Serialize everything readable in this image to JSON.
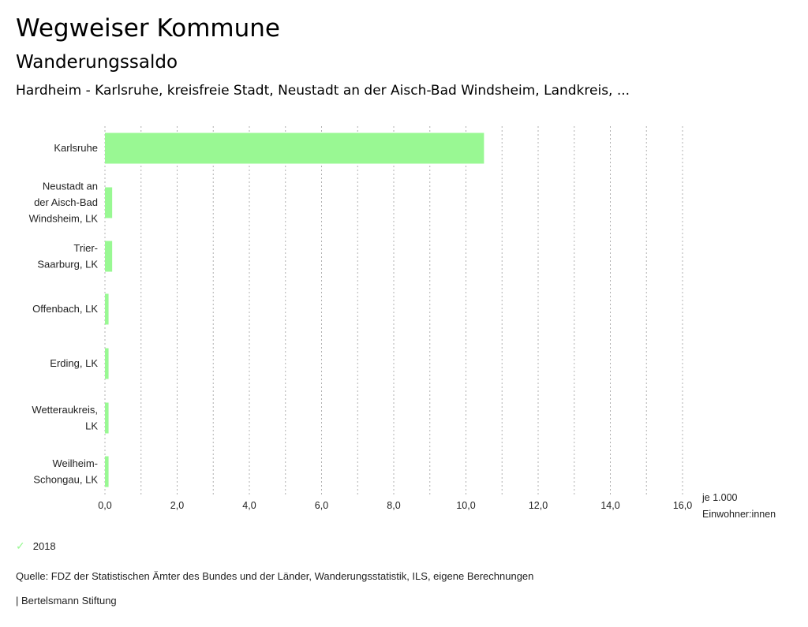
{
  "header": {
    "title": "Wegweiser Kommune",
    "subtitle": "Wanderungssaldo",
    "description": "Hardheim - Karlsruhe, kreisfreie Stadt, Neustadt an der Aisch-Bad Windsheim, Landkreis, ..."
  },
  "legend": {
    "icon": "check-icon",
    "label": "2018"
  },
  "footer": {
    "source": "Quelle: FDZ der Statistischen Ämter des Bundes und der Länder, Wanderungsstatistik, ILS, eigene Berechnungen",
    "credit": "| Bertelsmann Stiftung"
  },
  "chart_data": {
    "type": "bar",
    "orientation": "horizontal",
    "title": "Wanderungssaldo",
    "categories": [
      [
        "Karlsruhe"
      ],
      [
        "Neustadt an",
        "der Aisch-Bad",
        "Windsheim, LK"
      ],
      [
        "Trier-",
        "Saarburg, LK"
      ],
      [
        "Offenbach, LK"
      ],
      [
        "Erding, LK"
      ],
      [
        "Wetteraukreis,",
        "LK"
      ],
      [
        "Weilheim-",
        "Schongau, LK"
      ]
    ],
    "series": [
      {
        "name": "2018",
        "color": "#99f893",
        "values": [
          10.5,
          0.2,
          0.2,
          0.1,
          0.1,
          0.1,
          0.1
        ]
      }
    ],
    "xlabel": "je 1.000 Einwohner:innen",
    "xlabel_lines": [
      "je 1.000",
      "Einwohner:innen"
    ],
    "xlim": [
      0,
      16
    ],
    "xticks": [
      "0,0",
      "2,0",
      "4,0",
      "6,0",
      "8,0",
      "10,0",
      "12,0",
      "14,0",
      "16,0"
    ],
    "xtick_values": [
      0,
      2,
      4,
      6,
      8,
      10,
      12,
      14,
      16
    ],
    "grid": true,
    "legend_position": "bottom-left"
  }
}
